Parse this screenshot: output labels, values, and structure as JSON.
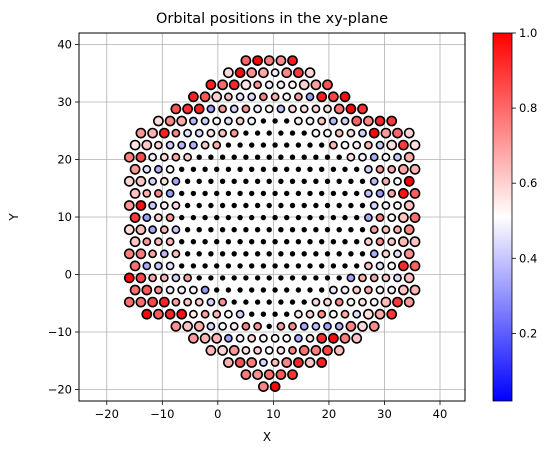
{
  "chart_data": {
    "type": "scatter",
    "title": "Orbital positions in the xy-plane",
    "xlabel": "X",
    "ylabel": "Y",
    "xlim": [
      -25,
      44.5
    ],
    "ylim": [
      -22,
      42
    ],
    "grid": true,
    "xticks": [
      -20,
      -10,
      0,
      10,
      20,
      30,
      40
    ],
    "yticks": [
      -20,
      -10,
      0,
      10,
      20,
      30,
      40
    ],
    "marker_edge_color": "#000000",
    "colormap": {
      "name": "bwr",
      "range": [
        0.02,
        1.0
      ],
      "ticks": [
        0.2,
        0.4,
        0.6,
        0.8,
        1.0
      ],
      "colors": [
        "#0000ff",
        "#ffffff",
        "#ff0000"
      ]
    },
    "lattice": {
      "description_values_in_data_units": true,
      "x_spacing": 2.1,
      "y_spacing": 2.1,
      "x_min": -17.0,
      "x_max": 36.5,
      "y_min": -19.5,
      "y_max": 39.0,
      "hex_center_x": 9.7,
      "hex_center_y": 9.6
    }
  }
}
